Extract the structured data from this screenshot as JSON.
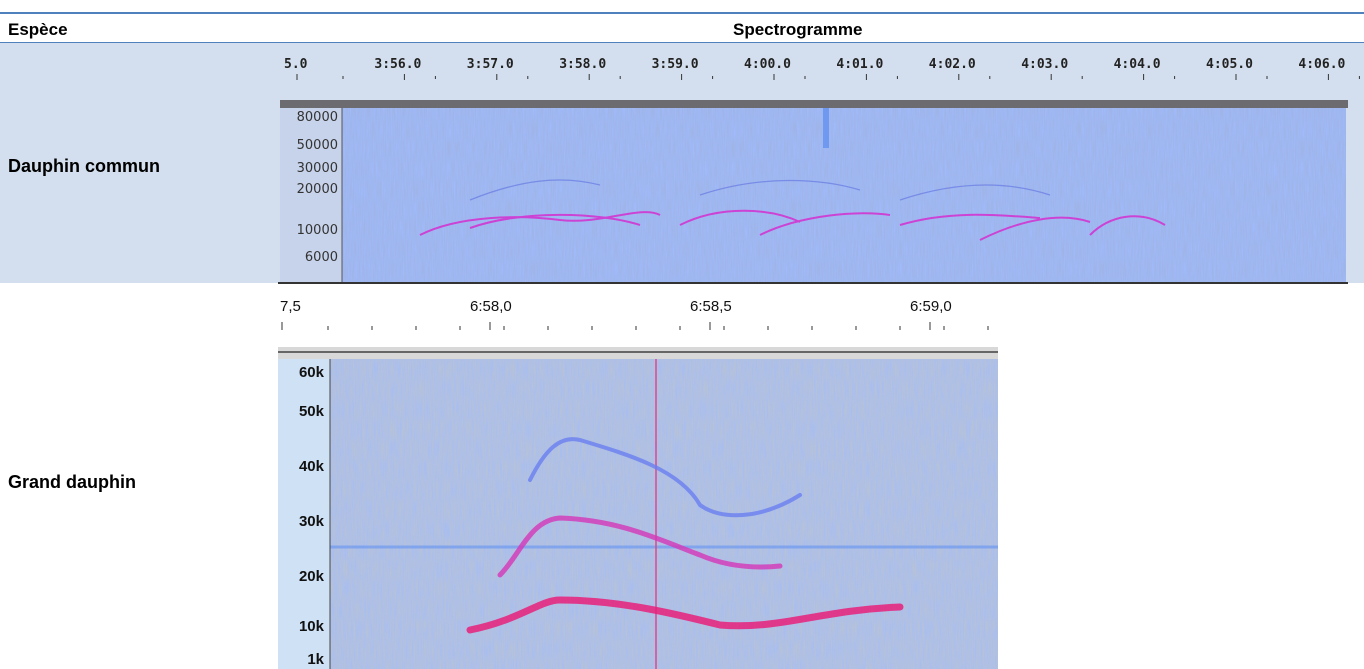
{
  "table": {
    "header": [
      "Espèce",
      "Spectrogramme"
    ],
    "rows": [
      {
        "species": "Dauphin commun",
        "spectrogram": {
          "time_labels": [
            "5.0",
            "3:56.0",
            "3:57.0",
            "3:58.0",
            "3:59.0",
            "4:00.0",
            "4:01.0",
            "4:02.0",
            "4:03.0",
            "4:04.0",
            "4:05.0",
            "4:06.0"
          ],
          "freq_labels": [
            "80000",
            "50000",
            "30000",
            "20000",
            "10000",
            "6000"
          ]
        }
      },
      {
        "species": "Grand dauphin",
        "spectrogram": {
          "time_labels": [
            "7,5",
            "6:58,0",
            "6:58,5",
            "6:59,0"
          ],
          "freq_labels": [
            "60k",
            "50k",
            "40k",
            "30k",
            "20k",
            "10k",
            "1k"
          ]
        }
      }
    ]
  }
}
